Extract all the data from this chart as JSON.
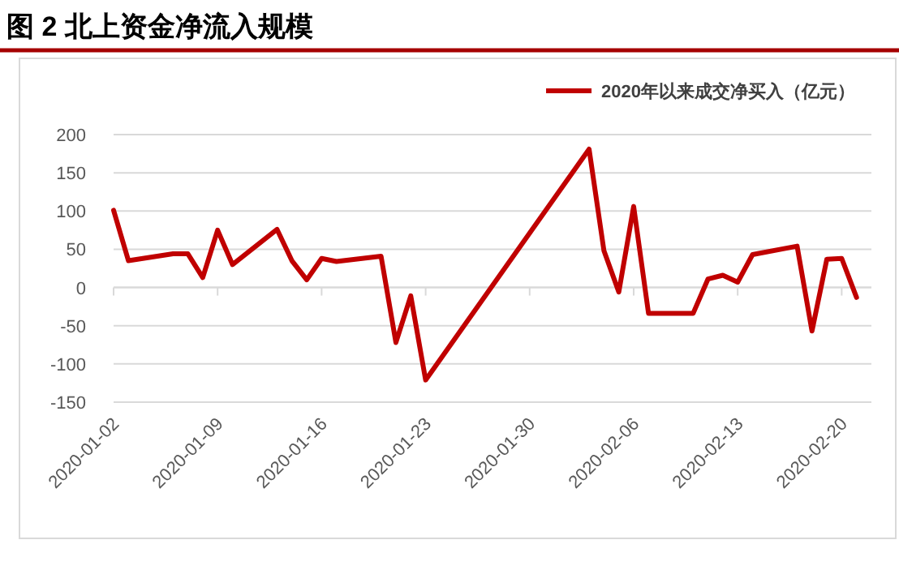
{
  "chart_data": {
    "type": "line",
    "title": "图 2 北上资金净流入规模",
    "x": [
      "2020-01-02",
      "2020-01-03",
      "2020-01-06",
      "2020-01-07",
      "2020-01-08",
      "2020-01-09",
      "2020-01-10",
      "2020-01-13",
      "2020-01-14",
      "2020-01-15",
      "2020-01-16",
      "2020-01-17",
      "2020-01-20",
      "2020-01-21",
      "2020-01-22",
      "2020-01-23",
      "2020-02-03",
      "2020-02-04",
      "2020-02-05",
      "2020-02-06",
      "2020-02-07",
      "2020-02-10",
      "2020-02-11",
      "2020-02-12",
      "2020-02-13",
      "2020-02-14",
      "2020-02-17",
      "2020-02-18",
      "2020-02-19",
      "2020-02-20",
      "2020-02-21"
    ],
    "series": [
      {
        "name": "2020年以来成交净买入（亿元）",
        "color": "#c00000",
        "values": [
          101,
          35,
          44,
          44,
          13,
          75,
          30,
          76,
          35,
          10,
          38,
          34,
          41,
          -72,
          -11,
          -121,
          181,
          48,
          -6,
          106,
          -34,
          -34,
          11,
          16,
          7,
          43,
          54,
          -57,
          37,
          38,
          -13
        ]
      }
    ],
    "xlim": [
      "2020-01-02",
      "2020-02-22"
    ],
    "xticks": [
      {
        "value": "2020-01-02",
        "label": "2020-01-02"
      },
      {
        "value": "2020-01-09",
        "label": "2020-01-09"
      },
      {
        "value": "2020-01-16",
        "label": "2020-01-16"
      },
      {
        "value": "2020-01-23",
        "label": "2020-01-23"
      },
      {
        "value": "2020-01-30",
        "label": "2020-01-30"
      },
      {
        "value": "2020-02-06",
        "label": "2020-02-06"
      },
      {
        "value": "2020-02-13",
        "label": "2020-02-13"
      },
      {
        "value": "2020-02-20",
        "label": "2020-02-20"
      }
    ],
    "ylim": [
      -150,
      200
    ],
    "yticks": [
      -150,
      -100,
      -50,
      0,
      50,
      100,
      150,
      200
    ],
    "grid": "y",
    "legend": "top right",
    "marker": "none",
    "line_style": "solid"
  }
}
